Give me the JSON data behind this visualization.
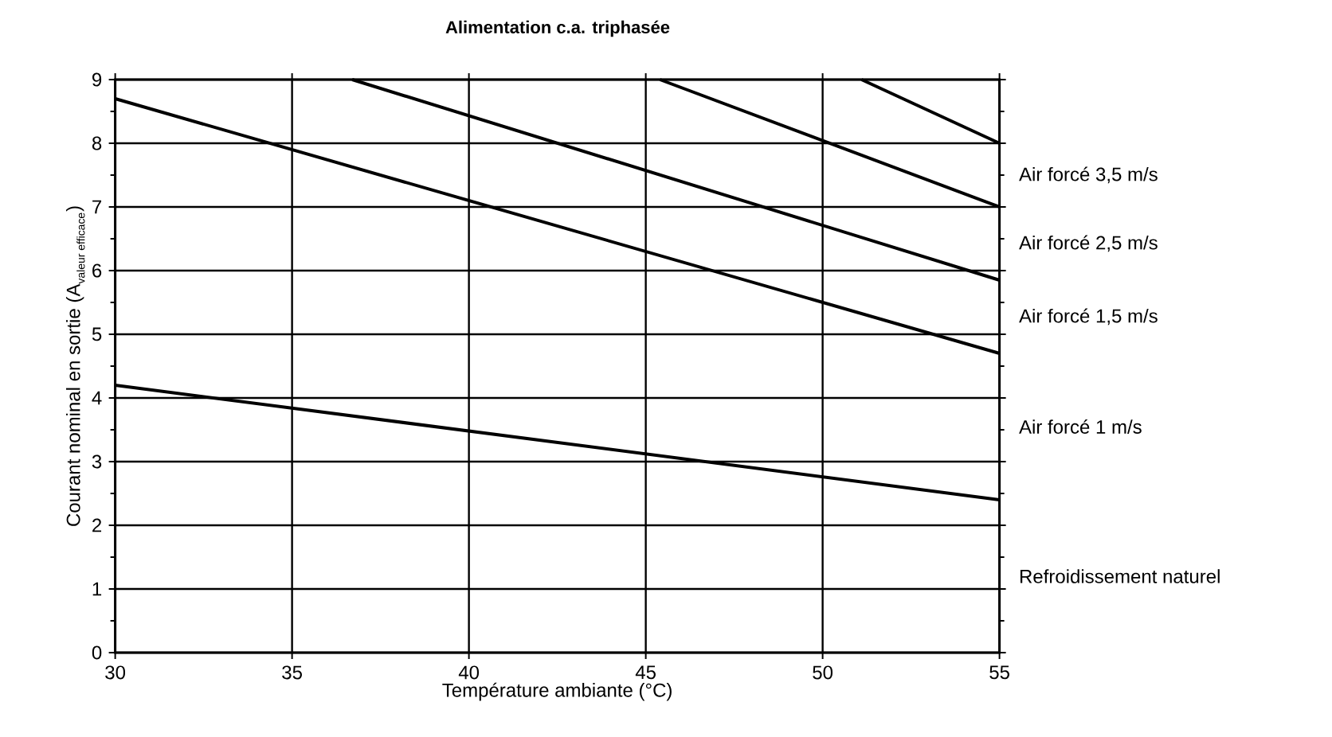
{
  "chart_data": {
    "type": "line",
    "title": "Alimentation c.a. triphasée",
    "xlabel": "Température ambiante (°C)",
    "ylabel": "\\mbox{Courant nominal en sortie (A}_{\\mbox{\\scriptsize valeur efficace}}\\mbox{)}",
    "legend": "right",
    "xlim": [
      30,
      55
    ],
    "ylim": [
      0,
      9
    ],
    "xticks": [
      30,
      35,
      40,
      45,
      50,
      55
    ],
    "yticks": [
      0,
      1,
      2,
      3,
      4,
      5,
      6,
      7,
      8,
      9
    ],
    "grid": true,
    "marker": "none",
    "line_style": "solid",
    "series": [
      {
        "name": "Air forcé 3,5 m/s",
        "color": "#000000",
        "x": [
          51.1,
          55
        ],
        "values": [
          9,
          8.0
        ]
      },
      {
        "name": "Air forcé 2,5 m/s",
        "color": "#000000",
        "x": [
          45.4,
          55
        ],
        "values": [
          9,
          7.0
        ]
      },
      {
        "name": "Air forcé 1,5 m/s",
        "color": "#000000",
        "x": [
          36.7,
          55
        ],
        "values": [
          9,
          5.85
        ]
      },
      {
        "name": "Air forcé 1 m/s",
        "color": "#000000",
        "x": [
          30,
          55
        ],
        "values": [
          8.7,
          4.7
        ]
      },
      {
        "name": "Refroidissement naturel",
        "color": "#000000",
        "x": [
          30,
          55
        ],
        "values": [
          4.2,
          2.4
        ]
      }
    ]
  }
}
